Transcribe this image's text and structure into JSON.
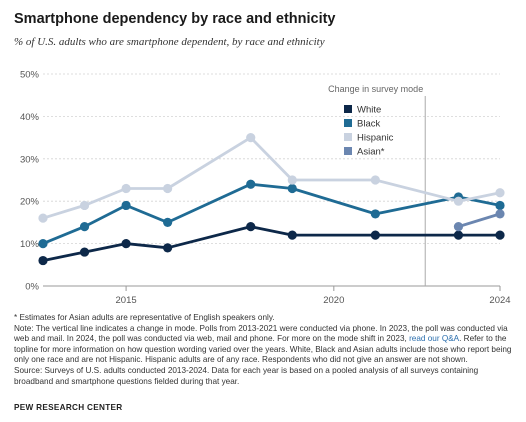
{
  "title": "Smartphone dependency by race and ethnicity",
  "subtitle": "% of U.S. adults who are smartphone dependent, by race and ethnicity",
  "chart_data": {
    "type": "line",
    "x": [
      2013,
      2014,
      2015,
      2016,
      2018,
      2019,
      2021,
      2023,
      2024
    ],
    "xticks": [
      "2015",
      "2020",
      "2024"
    ],
    "xtick_values": [
      2015,
      2020,
      2024
    ],
    "ylim": [
      0,
      50
    ],
    "yticks": [
      "0%",
      "10%",
      "20%",
      "30%",
      "40%",
      "50%"
    ],
    "ytick_values": [
      0,
      10,
      20,
      30,
      40,
      50
    ],
    "grid": true,
    "mode_change_label": "Change in survey mode",
    "mode_change_x": 2022.2,
    "legend_position": "top-right",
    "series": [
      {
        "name": "White",
        "color": "#0d2849",
        "x": [
          2013,
          2014,
          2015,
          2016,
          2018,
          2019,
          2021,
          2023,
          2024
        ],
        "values": [
          6,
          8,
          10,
          9,
          14,
          12,
          12,
          12,
          12
        ]
      },
      {
        "name": "Black",
        "color": "#1f6b94",
        "x": [
          2013,
          2014,
          2015,
          2016,
          2018,
          2019,
          2021,
          2023,
          2024
        ],
        "values": [
          10,
          14,
          19,
          15,
          24,
          23,
          17,
          21,
          19
        ]
      },
      {
        "name": "Hispanic",
        "color": "#c9d2e0",
        "x": [
          2013,
          2014,
          2015,
          2016,
          2018,
          2019,
          2021,
          2023,
          2024
        ],
        "values": [
          16,
          19,
          23,
          23,
          35,
          25,
          25,
          20,
          22
        ]
      },
      {
        "name": "Asian*",
        "color": "#6b86b0",
        "x": [
          2023,
          2024
        ],
        "values": [
          14,
          17
        ]
      }
    ]
  },
  "notes": {
    "asterisk": "* Estimates for Asian adults are representative of English speakers only.",
    "note_1": "Note: The vertical line indicates a change in mode. Polls from 2013-2021 were conducted via phone. In 2023, the poll was conducted via web and mail. In 2024, the poll was conducted via web, mail and phone. For more on the mode shift in 2023,",
    "link": "read our Q&A",
    "note_2": ". Refer to the topline for more information on how question wording varied over the years. White, Black and Asian adults include those who report being only one race and are not Hispanic. Hispanic adults are of any race. Respondents who did not give an answer are not shown.",
    "source": "Source: Surveys of U.S. adults conducted 2013-2024. Data for each year is based on a pooled analysis of all surveys containing broadband and smartphone questions fielded during that year."
  },
  "footer": "PEW RESEARCH CENTER"
}
